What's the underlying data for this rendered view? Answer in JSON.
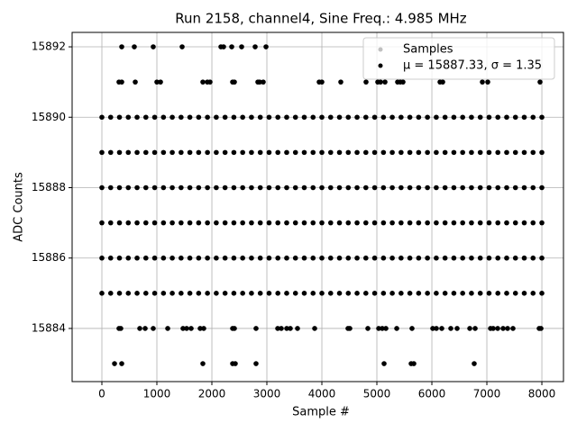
{
  "chart_data": {
    "type": "scatter",
    "title": "Run 2158, channel4, Sine Freq.: 4.985 MHz",
    "xlabel": "Sample #",
    "ylabel": "ADC Counts",
    "xlim": [
      -541,
      8393
    ],
    "ylim": [
      15882.49,
      15892.41
    ],
    "xticks": [
      0,
      1000,
      2000,
      3000,
      4000,
      5000,
      6000,
      7000,
      8000
    ],
    "yticks": [
      15884,
      15886,
      15888,
      15890,
      15892
    ],
    "grid": true,
    "legend": {
      "corner": "upper right",
      "entries": [
        {
          "label": "Samples",
          "color": "#c0c0c0"
        }
      ]
    },
    "series": [
      {
        "name": "μ = 15887.33, σ = 1.35",
        "color": "#000000",
        "x": [
          0,
          160,
          320,
          480,
          640,
          800,
          960,
          1120,
          1280,
          1440,
          1600,
          1760,
          1920,
          2080,
          2240,
          2400,
          2560,
          2720,
          2880,
          3040,
          3200,
          3360,
          3520,
          3680,
          3840,
          4000,
          4160,
          4320,
          4480,
          4640,
          4800,
          4960,
          5120,
          5280,
          5440,
          5600,
          5760,
          5920,
          6080,
          6240,
          6400,
          6560,
          6720,
          6880,
          7040,
          7200,
          7360,
          7520,
          7680,
          7840,
          8000,
          0,
          160,
          320,
          480,
          640,
          800,
          960,
          1120,
          1280,
          1440,
          1600,
          1760,
          1920,
          2080,
          2240,
          2400,
          2560,
          2720,
          2880,
          3040,
          3200,
          3360,
          3520,
          3680,
          3840,
          4000,
          4160,
          4320,
          4480,
          4640,
          4800,
          4960,
          5120,
          5280,
          5440,
          5600,
          5760,
          5920,
          6080,
          6240,
          6400,
          6560,
          6720,
          6880,
          7040,
          7200,
          7360,
          7520,
          7680,
          7840,
          8000,
          0,
          160,
          320,
          480,
          640,
          800,
          960,
          1120,
          1280,
          1440,
          1600,
          1760,
          1920,
          2080,
          2240,
          2400,
          2560,
          2720,
          2880,
          3040,
          3200,
          3360,
          3520,
          3680,
          3840,
          4000,
          4160,
          4320,
          4480,
          4640,
          4800,
          4960,
          5120,
          5280,
          5440,
          5600,
          5760,
          5920,
          6080,
          6240,
          6400,
          6560,
          6720,
          6880,
          7040,
          7200,
          7360,
          7520,
          7680,
          7840,
          8000,
          0,
          160,
          320,
          480,
          640,
          800,
          960,
          1120,
          1280,
          1440,
          1600,
          1760,
          1920,
          2080,
          2240,
          2400,
          2560,
          2720,
          2880,
          3040,
          3200,
          3360,
          3520,
          3680,
          3840,
          4000,
          4160,
          4320,
          4480,
          4640,
          4800,
          4960,
          5120,
          5280,
          5440,
          5600,
          5760,
          5920,
          6080,
          6240,
          6400,
          6560,
          6720,
          6880,
          7040,
          7200,
          7360,
          7520,
          7680,
          7840,
          8000,
          0,
          160,
          320,
          480,
          640,
          800,
          960,
          1120,
          1280,
          1440,
          1600,
          1760,
          1920,
          2080,
          2240,
          2400,
          2560,
          2720,
          2880,
          3040,
          3200,
          3360,
          3520,
          3680,
          3840,
          4000,
          4160,
          4320,
          4480,
          4640,
          4800,
          4960,
          5120,
          5280,
          5440,
          5600,
          5760,
          5920,
          6080,
          6240,
          6400,
          6560,
          6720,
          6880,
          7040,
          7200,
          7360,
          7520,
          7680,
          7840,
          8000,
          0,
          160,
          320,
          480,
          640,
          800,
          960,
          1120,
          1280,
          1440,
          1600,
          1760,
          1920,
          2080,
          2240,
          2400,
          2560,
          2720,
          2880,
          3040,
          3200,
          3360,
          3520,
          3680,
          3840,
          4000,
          4160,
          4320,
          4480,
          4640,
          4800,
          4960,
          5120,
          5280,
          5440,
          5600,
          5760,
          5920,
          6080,
          6240,
          6400,
          6560,
          6720,
          6880,
          7040,
          7200,
          7360,
          7520,
          7680,
          7840,
          8000,
          361,
          590,
          934,
          1459,
          2164,
          2213,
          2361,
          2541,
          2787,
          2984,
          311,
          361,
          607,
          1000,
          1066,
          1836,
          1918,
          1967,
          2377,
          2410,
          2836,
          2869,
          2934,
          3951,
          4000,
          4344,
          4803,
          5016,
          5066,
          5148,
          5377,
          5426,
          5475,
          6148,
          6197,
          6918,
          7016,
          7967,
          311,
          344,
          689,
          787,
          934,
          1197,
          1475,
          1541,
          1623,
          1787,
          1852,
          2377,
          2410,
          2803,
          3197,
          3262,
          3361,
          3426,
          3557,
          3869,
          4475,
          4508,
          4836,
          5033,
          5098,
          5164,
          5361,
          5639,
          6016,
          6082,
          6180,
          6344,
          6459,
          6689,
          6787,
          7066,
          7115,
          7197,
          7295,
          7377,
          7475,
          7951,
          7984,
          230,
          361,
          1836,
          2377,
          2426,
          2803,
          5131,
          5623,
          5672,
          6770
        ],
        "values": [
          15885,
          15885,
          15885,
          15885,
          15885,
          15885,
          15885,
          15885,
          15885,
          15885,
          15885,
          15885,
          15885,
          15885,
          15885,
          15885,
          15885,
          15885,
          15885,
          15885,
          15885,
          15885,
          15885,
          15885,
          15885,
          15885,
          15885,
          15885,
          15885,
          15885,
          15885,
          15885,
          15885,
          15885,
          15885,
          15885,
          15885,
          15885,
          15885,
          15885,
          15885,
          15885,
          15885,
          15885,
          15885,
          15885,
          15885,
          15885,
          15885,
          15885,
          15885,
          15886,
          15886,
          15886,
          15886,
          15886,
          15886,
          15886,
          15886,
          15886,
          15886,
          15886,
          15886,
          15886,
          15886,
          15886,
          15886,
          15886,
          15886,
          15886,
          15886,
          15886,
          15886,
          15886,
          15886,
          15886,
          15886,
          15886,
          15886,
          15886,
          15886,
          15886,
          15886,
          15886,
          15886,
          15886,
          15886,
          15886,
          15886,
          15886,
          15886,
          15886,
          15886,
          15886,
          15886,
          15886,
          15886,
          15886,
          15886,
          15886,
          15886,
          15886,
          15887,
          15887,
          15887,
          15887,
          15887,
          15887,
          15887,
          15887,
          15887,
          15887,
          15887,
          15887,
          15887,
          15887,
          15887,
          15887,
          15887,
          15887,
          15887,
          15887,
          15887,
          15887,
          15887,
          15887,
          15887,
          15887,
          15887,
          15887,
          15887,
          15887,
          15887,
          15887,
          15887,
          15887,
          15887,
          15887,
          15887,
          15887,
          15887,
          15887,
          15887,
          15887,
          15887,
          15887,
          15887,
          15887,
          15887,
          15887,
          15887,
          15887,
          15887,
          15888,
          15888,
          15888,
          15888,
          15888,
          15888,
          15888,
          15888,
          15888,
          15888,
          15888,
          15888,
          15888,
          15888,
          15888,
          15888,
          15888,
          15888,
          15888,
          15888,
          15888,
          15888,
          15888,
          15888,
          15888,
          15888,
          15888,
          15888,
          15888,
          15888,
          15888,
          15888,
          15888,
          15888,
          15888,
          15888,
          15888,
          15888,
          15888,
          15888,
          15888,
          15888,
          15888,
          15888,
          15888,
          15888,
          15888,
          15888,
          15888,
          15888,
          15888,
          15889,
          15889,
          15889,
          15889,
          15889,
          15889,
          15889,
          15889,
          15889,
          15889,
          15889,
          15889,
          15889,
          15889,
          15889,
          15889,
          15889,
          15889,
          15889,
          15889,
          15889,
          15889,
          15889,
          15889,
          15889,
          15889,
          15889,
          15889,
          15889,
          15889,
          15889,
          15889,
          15889,
          15889,
          15889,
          15889,
          15889,
          15889,
          15889,
          15889,
          15889,
          15889,
          15889,
          15889,
          15889,
          15889,
          15889,
          15889,
          15889,
          15889,
          15889,
          15890,
          15890,
          15890,
          15890,
          15890,
          15890,
          15890,
          15890,
          15890,
          15890,
          15890,
          15890,
          15890,
          15890,
          15890,
          15890,
          15890,
          15890,
          15890,
          15890,
          15890,
          15890,
          15890,
          15890,
          15890,
          15890,
          15890,
          15890,
          15890,
          15890,
          15890,
          15890,
          15890,
          15890,
          15890,
          15890,
          15890,
          15890,
          15890,
          15890,
          15890,
          15890,
          15890,
          15890,
          15890,
          15890,
          15890,
          15890,
          15890,
          15890,
          15890,
          15892,
          15892,
          15892,
          15892,
          15892,
          15892,
          15892,
          15892,
          15892,
          15892,
          15891,
          15891,
          15891,
          15891,
          15891,
          15891,
          15891,
          15891,
          15891,
          15891,
          15891,
          15891,
          15891,
          15891,
          15891,
          15891,
          15891,
          15891,
          15891,
          15891,
          15891,
          15891,
          15891,
          15891,
          15891,
          15891,
          15891,
          15891,
          15884,
          15884,
          15884,
          15884,
          15884,
          15884,
          15884,
          15884,
          15884,
          15884,
          15884,
          15884,
          15884,
          15884,
          15884,
          15884,
          15884,
          15884,
          15884,
          15884,
          15884,
          15884,
          15884,
          15884,
          15884,
          15884,
          15884,
          15884,
          15884,
          15884,
          15884,
          15884,
          15884,
          15884,
          15884,
          15884,
          15884,
          15884,
          15884,
          15884,
          15884,
          15884,
          15884,
          15883,
          15883,
          15883,
          15883,
          15883,
          15883,
          15883,
          15883,
          15883,
          15883
        ]
      }
    ]
  }
}
